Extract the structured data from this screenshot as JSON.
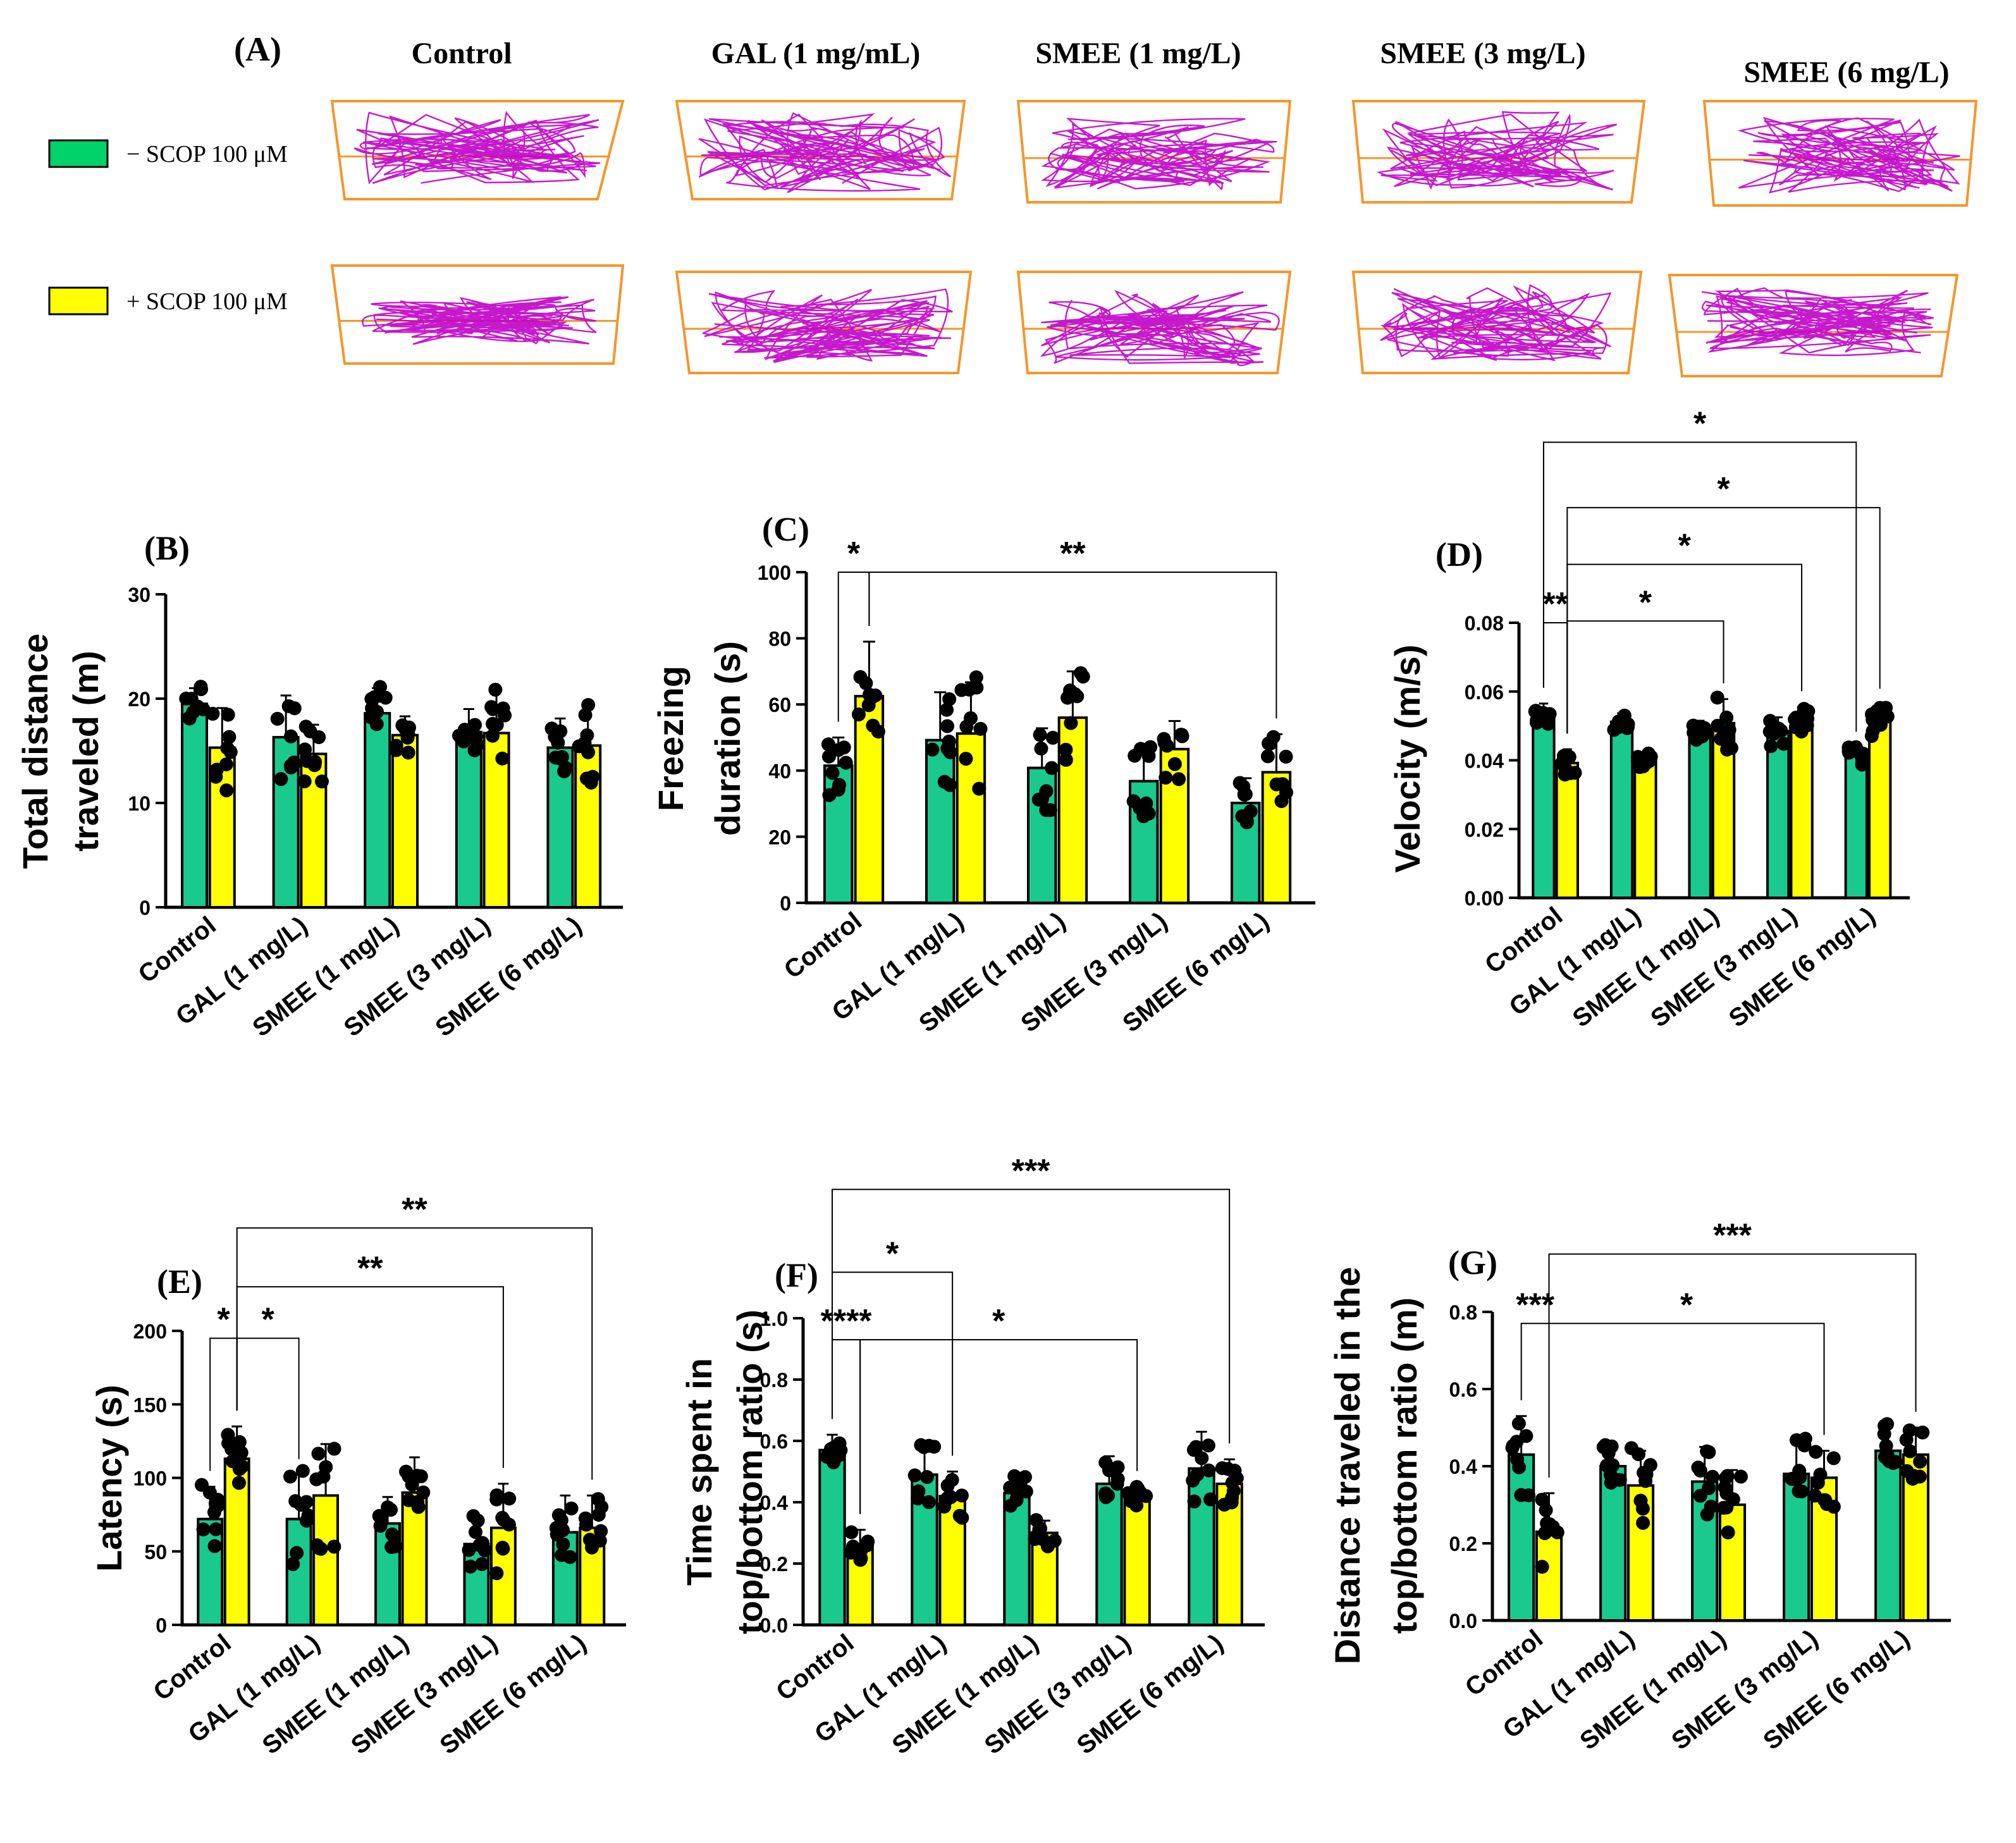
{
  "figure": {
    "panel_a": {
      "label": "(A)",
      "conditions": [
        "Control",
        "GAL (1 mg/mL)",
        "SMEE (1 mg/L)",
        "SMEE (3 mg/L)",
        "SMEE (6 mg/L)"
      ],
      "legend": [
        {
          "label": "− SCOP 100 μM",
          "color": "#00D26A"
        },
        {
          "label": "+ SCOP 100 μM",
          "color": "#FFFF00"
        }
      ],
      "track_color": "#C000C8",
      "tank_color": "#F5962A"
    }
  },
  "chart_data": [
    {
      "type": "bar",
      "panel": "(B)",
      "ylabel": [
        "Total distance",
        "traveled (m)"
      ],
      "categories": [
        "Control",
        "GAL (1 mg/L)",
        "SMEE (1 mg/L)",
        "SMEE (3 mg/L)",
        "SMEE (6 mg/L)"
      ],
      "ylim": [
        0,
        30
      ],
      "yticks": [
        "0",
        "10",
        "20",
        "30"
      ],
      "series": [
        {
          "name": "− SCOP 100 μM",
          "color": "#19C98E",
          "values": [
            19.5,
            16.3,
            18.6,
            16.8,
            15.3
          ],
          "errors": [
            1.5,
            4.0,
            2.4,
            2.2,
            2.8
          ]
        },
        {
          "name": "+ SCOP 100 μM",
          "color": "#FFFF00",
          "values": [
            15.3,
            14.7,
            16.5,
            16.7,
            15.5
          ],
          "errors": [
            3.8,
            2.8,
            1.8,
            4.2,
            3.6
          ]
        }
      ],
      "brackets": []
    },
    {
      "type": "bar",
      "panel": "(C)",
      "ylabel": [
        "Freezing",
        "duration (s)"
      ],
      "categories": [
        "Control",
        "GAL (1 mg/L)",
        "SMEE (1 mg/L)",
        "SMEE (3 mg/L)",
        "SMEE (6 mg/L)"
      ],
      "ylim": [
        0,
        100
      ],
      "yticks": [
        "0",
        "20",
        "40",
        "60",
        "80",
        "100"
      ],
      "series": [
        {
          "name": "− SCOP 100 μM",
          "color": "#19C98E",
          "values": [
            41.5,
            49.2,
            40.8,
            36.8,
            30.2
          ],
          "errors": [
            8.5,
            14.5,
            12.0,
            11.0,
            7.5
          ]
        },
        {
          "name": "+ SCOP 100 μM",
          "color": "#FFFF00",
          "values": [
            62.5,
            51.2,
            56.0,
            46.5,
            39.5
          ],
          "errors": [
            16.5,
            15.5,
            14.0,
            8.5,
            11.5
          ]
        }
      ],
      "brackets": [
        {
          "from": [
            0,
            0
          ],
          "to": [
            0,
            1
          ],
          "level": 100,
          "label": "*"
        },
        {
          "from": [
            0,
            1
          ],
          "to": [
            4,
            1
          ],
          "level": 100,
          "label": "**"
        }
      ]
    },
    {
      "type": "bar",
      "panel": "(D)",
      "ylabel": [
        "Velocity (m/s)"
      ],
      "categories": [
        "Control",
        "GAL (1 mg/L)",
        "SMEE (1 mg/L)",
        "SMEE (3 mg/L)",
        "SMEE (6 mg/L)"
      ],
      "ylim": [
        0,
        0.08
      ],
      "yticks": [
        "0.00",
        "0.02",
        "0.04",
        "0.06",
        "0.08"
      ],
      "series": [
        {
          "name": "− SCOP 100 μM",
          "color": "#19C98E",
          "values": [
            0.0525,
            0.0512,
            0.0485,
            0.0485,
            0.0412
          ],
          "errors": [
            0.004,
            0.0025,
            0.003,
            0.004,
            0.0025
          ]
        },
        {
          "name": "+ SCOP 100 μM",
          "color": "#FFFF00",
          "values": [
            0.0392,
            0.0402,
            0.0508,
            0.0515,
            0.0512
          ],
          "errors": [
            0.004,
            0.002,
            0.007,
            0.004,
            0.005
          ]
        }
      ],
      "brackets": [
        {
          "from": [
            0,
            0
          ],
          "to": [
            0,
            1
          ],
          "level": 0.08,
          "label": "**"
        },
        {
          "from": [
            0,
            1
          ],
          "to": [
            2,
            1
          ],
          "level": 0.0805,
          "label": "*"
        },
        {
          "from": [
            0,
            1
          ],
          "to": [
            3,
            1
          ],
          "level": 0.097,
          "label": "*"
        },
        {
          "from": [
            0,
            1
          ],
          "to": [
            4,
            1
          ],
          "level": 0.1135,
          "label": "*"
        },
        {
          "from": [
            0,
            0
          ],
          "to": [
            4,
            0
          ],
          "level": 0.1325,
          "label": "*"
        }
      ]
    },
    {
      "type": "bar",
      "panel": "(E)",
      "ylabel": [
        "Latency (s)"
      ],
      "categories": [
        "Control",
        "GAL (1 mg/L)",
        "SMEE (1 mg/L)",
        "SMEE (3 mg/L)",
        "SMEE (6 mg/L)"
      ],
      "ylim": [
        0,
        200
      ],
      "yticks": [
        "0",
        "50",
        "100",
        "150",
        "200"
      ],
      "series": [
        {
          "name": "− SCOP 100 μM",
          "color": "#19C98E",
          "values": [
            72,
            72,
            69,
            55,
            63
          ],
          "errors": [
            22,
            30,
            18,
            18,
            25
          ]
        },
        {
          "name": "+ SCOP 100 μM",
          "color": "#FFFF00",
          "values": [
            113,
            88,
            90,
            66,
            66
          ],
          "errors": [
            22,
            35,
            24,
            30,
            22
          ]
        }
      ],
      "brackets": [
        {
          "from": [
            0,
            0
          ],
          "to": [
            0,
            1
          ],
          "level": 195,
          "label": "*"
        },
        {
          "from": [
            0,
            1
          ],
          "to": [
            1,
            0
          ],
          "level": 195,
          "label": "*"
        },
        {
          "from": [
            0,
            1
          ],
          "to": [
            3,
            1
          ],
          "level": 230,
          "label": "**"
        },
        {
          "from": [
            0,
            1
          ],
          "to": [
            4,
            1
          ],
          "level": 270,
          "label": "**"
        }
      ]
    },
    {
      "type": "bar",
      "panel": "(F)",
      "ylabel": [
        "Time spent in",
        "top/bottom ratio (s)"
      ],
      "categories": [
        "Control",
        "GAL (1 mg/L)",
        "SMEE (1 mg/L)",
        "SMEE (3 mg/L)",
        "SMEE (6 mg/L)"
      ],
      "ylim": [
        0,
        1.0
      ],
      "yticks": [
        "0.0",
        "0.2",
        "0.4",
        "0.6",
        "0.8",
        "1.0"
      ],
      "series": [
        {
          "name": "− SCOP 100 μM",
          "color": "#19C98E",
          "values": [
            0.57,
            0.49,
            0.43,
            0.46,
            0.51
          ],
          "errors": [
            0.05,
            0.09,
            0.06,
            0.09,
            0.12
          ]
        },
        {
          "name": "+ SCOP 100 μM",
          "color": "#FFFF00",
          "values": [
            0.25,
            0.42,
            0.3,
            0.42,
            0.46
          ],
          "errors": [
            0.06,
            0.08,
            0.04,
            0.03,
            0.08
          ]
        }
      ],
      "brackets": [
        {
          "from": [
            0,
            0
          ],
          "to": [
            0,
            1
          ],
          "level": 0.93,
          "label": "****"
        },
        {
          "from": [
            0,
            1
          ],
          "to": [
            3,
            1
          ],
          "level": 0.93,
          "label": "*"
        },
        {
          "from": [
            0,
            0
          ],
          "to": [
            1,
            1
          ],
          "level": 1.15,
          "label": "*"
        },
        {
          "from": [
            0,
            0
          ],
          "to": [
            4,
            1
          ],
          "level": 1.42,
          "label": "***"
        }
      ]
    },
    {
      "type": "bar",
      "panel": "(G)",
      "ylabel": [
        "Distance traveled in the",
        "top/bottom ratio (m)"
      ],
      "categories": [
        "Control",
        "GAL (1 mg/L)",
        "SMEE (1 mg/L)",
        "SMEE (3 mg/L)",
        "SMEE (6 mg/L)"
      ],
      "ylim": [
        0,
        0.8
      ],
      "yticks": [
        "0.0",
        "0.2",
        "0.4",
        "0.6",
        "0.8"
      ],
      "series": [
        {
          "name": "− SCOP 100 μM",
          "color": "#19C98E",
          "values": [
            0.43,
            0.4,
            0.36,
            0.38,
            0.44
          ],
          "errors": [
            0.1,
            0.05,
            0.09,
            0.09,
            0.07
          ]
        },
        {
          "name": "+ SCOP 100 μM",
          "color": "#FFFF00",
          "values": [
            0.23,
            0.35,
            0.3,
            0.37,
            0.43
          ],
          "errors": [
            0.1,
            0.09,
            0.09,
            0.07,
            0.07
          ]
        }
      ],
      "brackets": [
        {
          "from": [
            0,
            0
          ],
          "to": [
            0,
            1
          ],
          "level": 0.77,
          "label": "***"
        },
        {
          "from": [
            0,
            1
          ],
          "to": [
            3,
            1
          ],
          "level": 0.77,
          "label": "*"
        },
        {
          "from": [
            0,
            1
          ],
          "to": [
            4,
            1
          ],
          "level": 0.95,
          "label": "***"
        }
      ]
    }
  ]
}
